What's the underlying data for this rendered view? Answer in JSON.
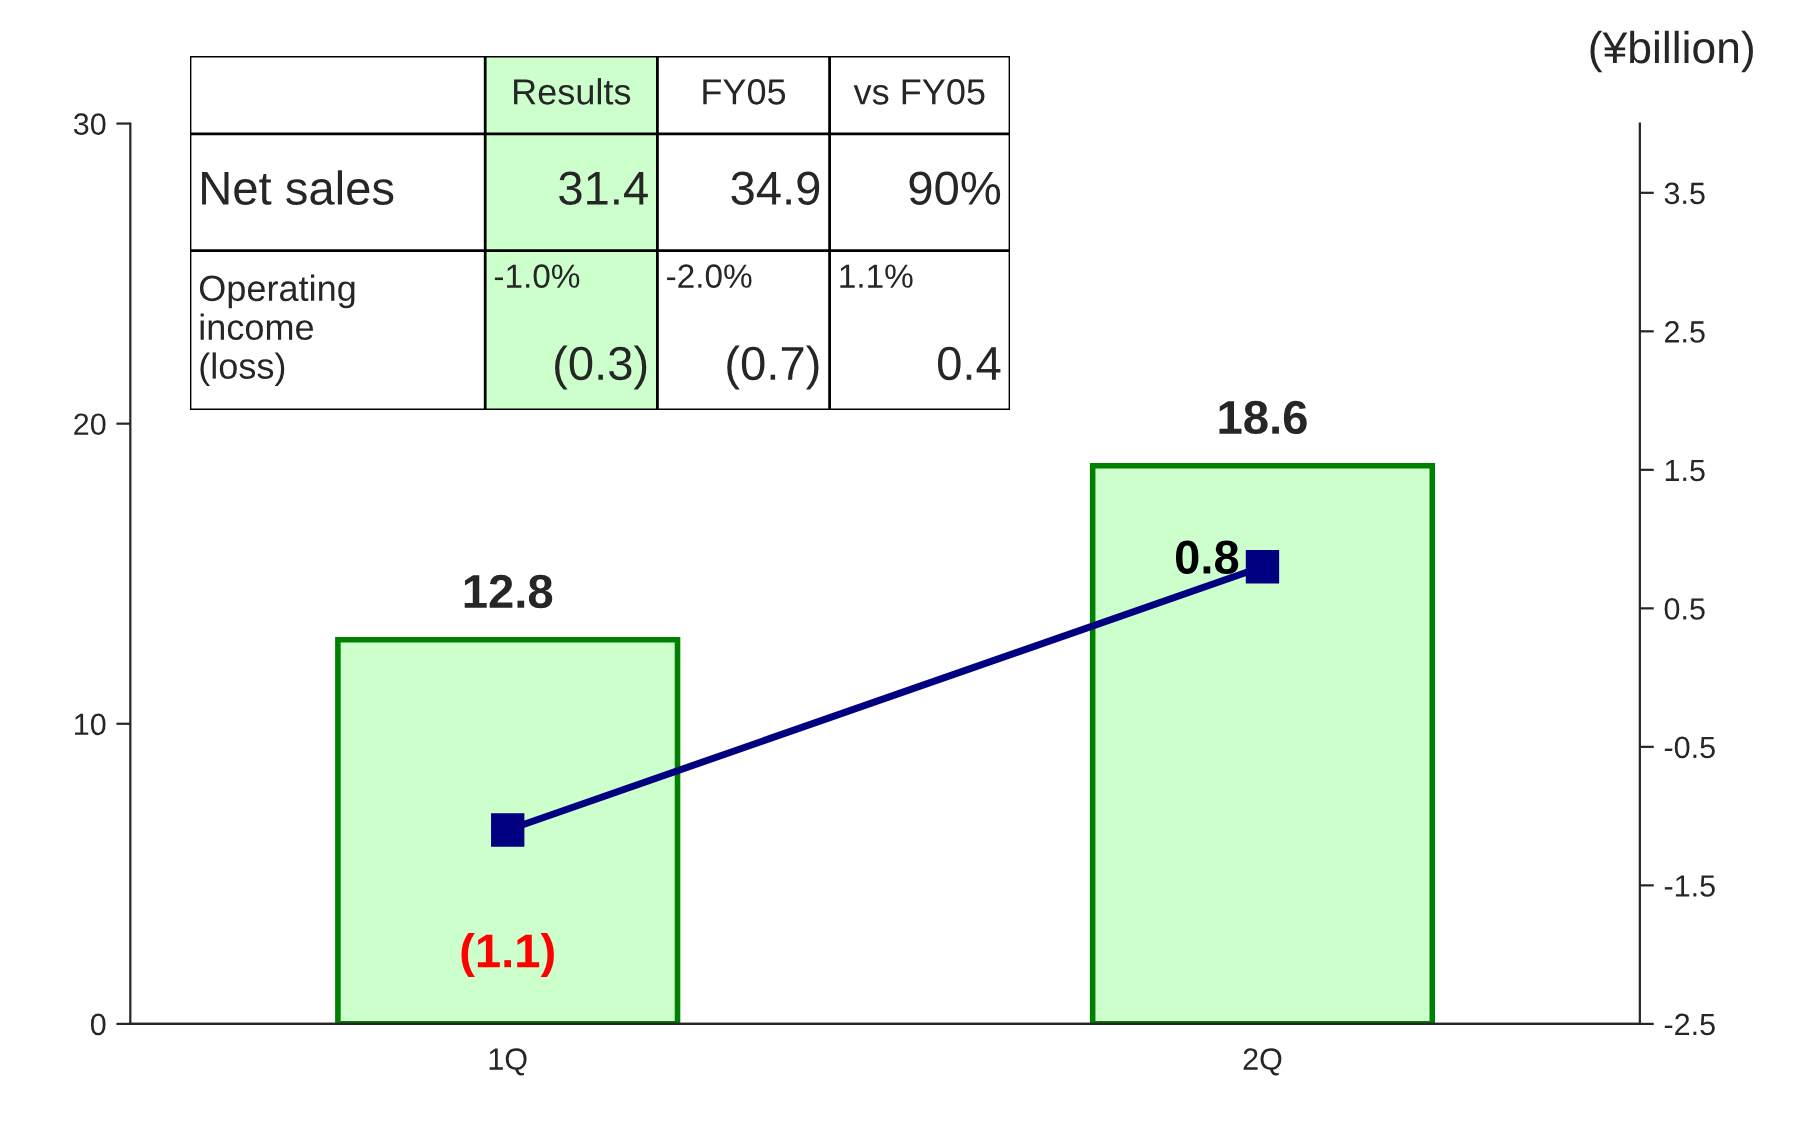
{
  "chart_data": {
    "type": "bar",
    "categories": [
      "1Q",
      "2Q"
    ],
    "y2label": "(¥billion)",
    "series": [
      {
        "color": "#ccffcc",
        "values": [
          12.8,
          18.6
        ],
        "value_labels": [
          "12.8",
          "18.6"
        ]
      },
      {
        "type": "line",
        "axis": "y2",
        "color": "#000080",
        "values": [
          -1.1,
          0.8
        ],
        "value_labels": [
          "(1.1)",
          "0.8"
        ],
        "marker": "square"
      }
    ],
    "ylim": [
      0,
      30
    ],
    "yticks": [
      0,
      10,
      20,
      30
    ],
    "y2lim": [
      -2.5,
      4.0
    ],
    "y2ticks": [
      -2.5,
      -1.5,
      -0.5,
      0.5,
      1.5,
      2.5,
      3.5
    ],
    "annotations": [
      "Results",
      "FY05",
      "vs FY05",
      "Net sales",
      "31.4",
      "34.9",
      "90%",
      "Operating\nincome\n(loss)",
      "-1.0%\n(0.3)",
      "-2.0%\n(0.7)",
      "1.1%\n0.4"
    ],
    "legend": false,
    "grid": false
  }
}
